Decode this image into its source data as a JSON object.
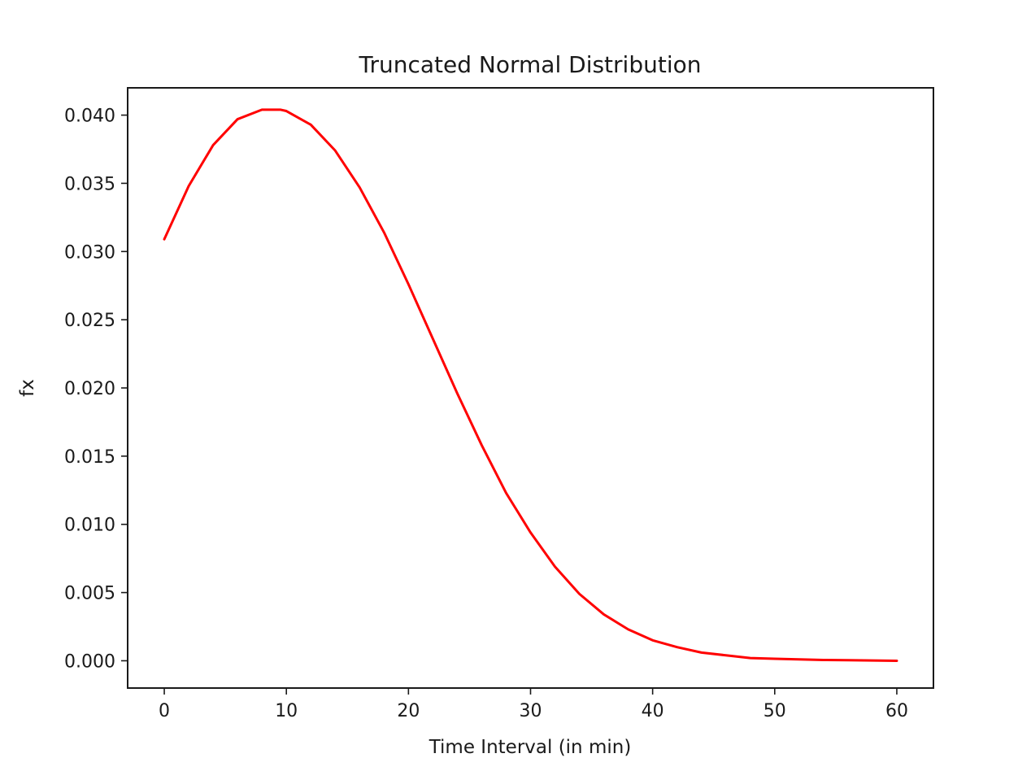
{
  "chart_data": {
    "type": "line",
    "title": "Truncated Normal Distribution",
    "xlabel": "Time Interval (in min)",
    "ylabel": "fx",
    "xlim": [
      -3,
      63
    ],
    "ylim": [
      -0.002,
      0.042
    ],
    "xticks": [
      0,
      10,
      20,
      30,
      40,
      50,
      60
    ],
    "xtick_labels": [
      "0",
      "10",
      "20",
      "30",
      "40",
      "50",
      "60"
    ],
    "yticks": [
      0.0,
      0.005,
      0.01,
      0.015,
      0.02,
      0.025,
      0.03,
      0.035,
      0.04
    ],
    "ytick_labels": [
      "0.000",
      "0.005",
      "0.010",
      "0.015",
      "0.020",
      "0.025",
      "0.030",
      "0.035",
      "0.040"
    ],
    "grid": false,
    "series": [
      {
        "color": "#ff0000",
        "x": [
          0,
          2,
          4,
          6,
          8,
          9.5,
          10,
          12,
          14,
          16,
          18,
          20,
          22,
          24,
          26,
          28,
          30,
          32,
          34,
          36,
          38,
          40,
          42,
          44,
          46,
          48,
          50,
          52,
          54,
          56,
          58,
          60
        ],
        "y": [
          0.0309,
          0.0348,
          0.0378,
          0.0397,
          0.0404,
          0.0404,
          0.0403,
          0.0393,
          0.0374,
          0.0347,
          0.0314,
          0.0276,
          0.0236,
          0.0196,
          0.0158,
          0.0123,
          0.0094,
          0.0069,
          0.0049,
          0.0034,
          0.0023,
          0.0015,
          0.001,
          0.0006,
          0.0004,
          0.0002,
          0.00015,
          0.0001,
          6e-05,
          4e-05,
          2e-05,
          0.0
        ]
      }
    ]
  }
}
